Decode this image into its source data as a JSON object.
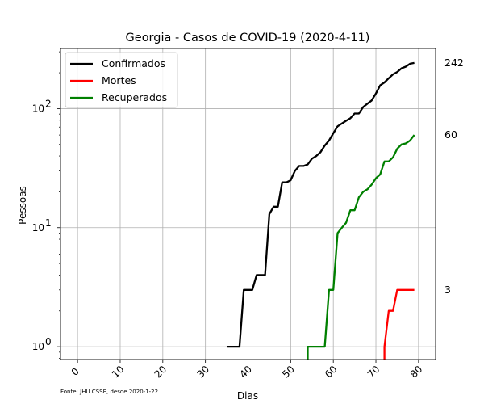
{
  "chart_data": {
    "type": "line",
    "title": "Georgia - Casos de COVID-19 (2020-4-11)",
    "xlabel": "Dias",
    "ylabel": "Pessoas",
    "y_scale": "log",
    "xlim": [
      -4,
      84
    ],
    "ylim": [
      0.78,
      320
    ],
    "x_ticks": [
      0,
      10,
      20,
      30,
      40,
      50,
      60,
      70,
      80
    ],
    "y_ticks": [
      1,
      10,
      100
    ],
    "grid": true,
    "legend_position": "top-left",
    "source_note": "Fonte: JHU CSSE, desde 2020-1-22",
    "series": [
      {
        "name": "Confirmados",
        "color": "#000000",
        "end_label": "242",
        "points": [
          [
            35,
            1
          ],
          [
            36,
            1
          ],
          [
            37,
            1
          ],
          [
            38,
            1
          ],
          [
            39,
            3
          ],
          [
            40,
            3
          ],
          [
            41,
            3
          ],
          [
            42,
            4
          ],
          [
            43,
            4
          ],
          [
            44,
            4
          ],
          [
            45,
            13
          ],
          [
            46,
            15
          ],
          [
            47,
            15
          ],
          [
            48,
            24
          ],
          [
            49,
            24
          ],
          [
            50,
            25
          ],
          [
            51,
            30
          ],
          [
            52,
            33
          ],
          [
            53,
            33
          ],
          [
            54,
            34
          ],
          [
            55,
            38
          ],
          [
            56,
            40
          ],
          [
            57,
            43
          ],
          [
            58,
            49
          ],
          [
            59,
            54
          ],
          [
            60,
            62
          ],
          [
            61,
            71
          ],
          [
            62,
            75
          ],
          [
            63,
            79
          ],
          [
            64,
            83
          ],
          [
            65,
            91
          ],
          [
            66,
            91
          ],
          [
            67,
            103
          ],
          [
            68,
            110
          ],
          [
            69,
            117
          ],
          [
            70,
            134
          ],
          [
            71,
            157
          ],
          [
            72,
            166
          ],
          [
            73,
            180
          ],
          [
            74,
            194
          ],
          [
            75,
            203
          ],
          [
            76,
            218
          ],
          [
            77,
            225
          ],
          [
            78,
            238
          ],
          [
            79,
            242
          ]
        ]
      },
      {
        "name": "Mortes",
        "color": "#ff0000",
        "end_label": "3",
        "points": [
          [
            72,
            0.78
          ],
          [
            72,
            1
          ],
          [
            73,
            2
          ],
          [
            74,
            2
          ],
          [
            75,
            3
          ],
          [
            76,
            3
          ],
          [
            77,
            3
          ],
          [
            78,
            3
          ],
          [
            79,
            3
          ]
        ]
      },
      {
        "name": "Recuperados",
        "color": "#008000",
        "end_label": "60",
        "points": [
          [
            54,
            0.78
          ],
          [
            54,
            1
          ],
          [
            55,
            1
          ],
          [
            56,
            1
          ],
          [
            57,
            1
          ],
          [
            58,
            1
          ],
          [
            59,
            3
          ],
          [
            60,
            3
          ],
          [
            61,
            9
          ],
          [
            62,
            10
          ],
          [
            63,
            11
          ],
          [
            64,
            14
          ],
          [
            65,
            14
          ],
          [
            66,
            18
          ],
          [
            67,
            20
          ],
          [
            68,
            21
          ],
          [
            69,
            23
          ],
          [
            70,
            26
          ],
          [
            71,
            28
          ],
          [
            72,
            36
          ],
          [
            73,
            36
          ],
          [
            74,
            39
          ],
          [
            75,
            46
          ],
          [
            76,
            50
          ],
          [
            77,
            51
          ],
          [
            78,
            54
          ],
          [
            79,
            60
          ]
        ]
      }
    ]
  }
}
